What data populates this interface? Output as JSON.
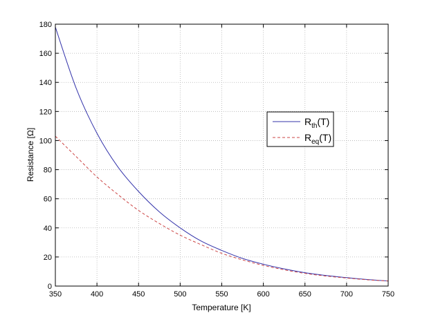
{
  "chart_data": {
    "type": "line",
    "xlabel": "Temperature [K]",
    "ylabel": "Resistance [Ω]",
    "xlim": [
      350,
      750
    ],
    "ylim": [
      0,
      180
    ],
    "xticks": [
      350,
      400,
      450,
      500,
      550,
      600,
      650,
      700,
      750
    ],
    "yticks": [
      0,
      20,
      40,
      60,
      80,
      100,
      120,
      140,
      160,
      180
    ],
    "grid": true,
    "legend_position": "right",
    "x": [
      350,
      375,
      400,
      425,
      450,
      475,
      500,
      525,
      550,
      575,
      600,
      625,
      650,
      675,
      700,
      725,
      750
    ],
    "series": [
      {
        "name_main": "R",
        "name_sub": "th",
        "name_suffix": "(T)",
        "color": "#3333aa",
        "dash": "solid",
        "values": [
          178,
          136,
          105,
          82,
          65,
          51,
          40,
          31,
          24.5,
          19,
          15,
          11.8,
          9.2,
          7.3,
          5.8,
          4.5,
          3.5
        ]
      },
      {
        "name_main": "R",
        "name_sub": "eq",
        "name_suffix": "(T)",
        "color": "#cc4444",
        "dash": "dashed",
        "values": [
          103,
          89,
          75,
          63,
          52,
          43,
          35,
          28.5,
          22.5,
          18,
          14.2,
          11.2,
          8.7,
          6.9,
          5.5,
          4.3,
          3.5
        ]
      }
    ]
  }
}
